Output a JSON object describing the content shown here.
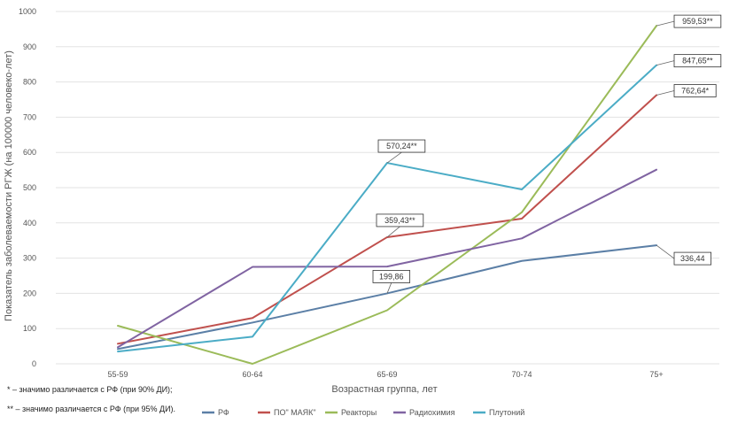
{
  "chart_data": {
    "type": "line",
    "title": "",
    "xlabel": "Возрастная группа, лет",
    "ylabel": "Показатель заболеваемости РГЖ (на 100000 человеко-лет)",
    "categories": [
      "55-59",
      "60-64",
      "65-69",
      "70-74",
      "75+"
    ],
    "y_ticks": [
      "0",
      "100",
      "200",
      "300",
      "400",
      "500",
      "600",
      "700",
      "800",
      "900",
      "1000"
    ],
    "ylim": [
      0,
      1000
    ],
    "grid": true,
    "legend_position": "bottom",
    "series": [
      {
        "name": "РФ",
        "color": "#5b7fa6",
        "values": [
          42,
          117,
          199.86,
          292,
          336.44
        ]
      },
      {
        "name": "ПО\" МАЯК\"",
        "color": "#c0504d",
        "values": [
          57,
          130,
          359.43,
          412,
          762.64
        ]
      },
      {
        "name": "Реакторы",
        "color": "#9bbb59",
        "values": [
          108,
          0,
          152,
          430,
          959.53
        ]
      },
      {
        "name": "Радиохимия",
        "color": "#8064a2",
        "values": [
          47,
          275,
          276,
          356,
          551
        ]
      },
      {
        "name": "Плутоний",
        "color": "#4bacc6",
        "values": [
          35,
          77,
          570.24,
          495,
          847.65
        ]
      }
    ],
    "annotations": [
      {
        "series": 4,
        "index": 2,
        "text": "570,24**"
      },
      {
        "series": 1,
        "index": 2,
        "text": "359,43**"
      },
      {
        "series": 0,
        "index": 2,
        "text": "199,86"
      },
      {
        "series": 2,
        "index": 4,
        "text": "959,53**"
      },
      {
        "series": 4,
        "index": 4,
        "text": "847,65**"
      },
      {
        "series": 1,
        "index": 4,
        "text": "762,64*"
      },
      {
        "series": 0,
        "index": 4,
        "text": "336,44"
      }
    ]
  },
  "notes": {
    "note1": "* – значимо различается с РФ (при 90% ДИ);",
    "note2": "** – значимо различается с РФ (при 95% ДИ)."
  }
}
